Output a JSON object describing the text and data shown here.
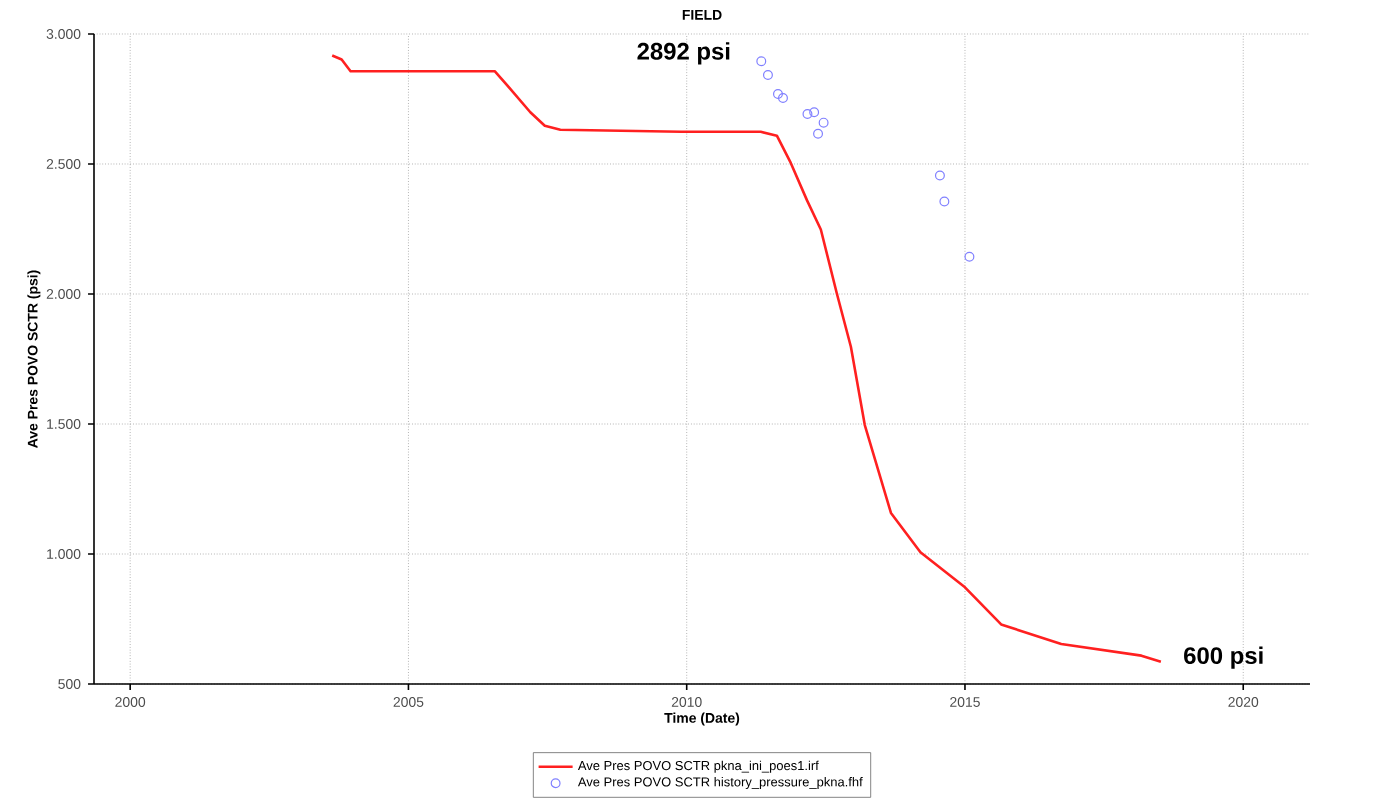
{
  "chart_data": {
    "type": "line",
    "title": "FIELD",
    "xlabel": "Time (Date)",
    "ylabel": "Ave Pres POVO SCTR (psi)",
    "xlim": [
      1999.35,
      2021.2
    ],
    "xticks": [
      2000,
      2005,
      2010,
      2015,
      2020
    ],
    "ylim": [
      500,
      3000
    ],
    "yticks": [
      {
        "value": 500,
        "label": "500"
      },
      {
        "value": 1000,
        "label": "1.000"
      },
      {
        "value": 1500,
        "label": "1.500"
      },
      {
        "value": 2000,
        "label": "2.000"
      },
      {
        "value": 2500,
        "label": "2.500"
      },
      {
        "value": 3000,
        "label": "3.000"
      }
    ],
    "grid": true,
    "legend": "bottom",
    "series": [
      {
        "name": "Ave Pres POVO SCTR pkna_ini_poes1.irf",
        "color": "#ff2020",
        "marker": "none",
        "line_style": "solid",
        "x": [
          2003.63,
          2003.8,
          2003.96,
          2004.86,
          2005.4,
          2006.55,
          2006.83,
          2007.19,
          2007.45,
          2007.73,
          2009.9,
          2011.33,
          2011.62,
          2011.87,
          2012.16,
          2012.41,
          2012.7,
          2012.95,
          2013.2,
          2013.67,
          2014.2,
          2015.0,
          2015.65,
          2016.73,
          2018.17,
          2018.52
        ],
        "values": [
          2917,
          2902,
          2857,
          2857,
          2857,
          2857,
          2789,
          2699,
          2647,
          2632,
          2624,
          2624,
          2609,
          2504,
          2361,
          2248,
          2000,
          1797,
          1496,
          1158,
          1007,
          872,
          729,
          654,
          609,
          586
        ]
      },
      {
        "name": "Ave Pres POVO SCTR history_pressure_pkna.fhf",
        "type": "scatter",
        "color": "#8080ff",
        "marker": "circle",
        "x": [
          2011.34,
          2011.46,
          2011.64,
          2011.73,
          2012.17,
          2012.29,
          2012.46,
          2012.36,
          2014.55,
          2014.63,
          2015.08
        ],
        "values": [
          2895,
          2842,
          2769,
          2754,
          2692,
          2699,
          2659,
          2616,
          2456,
          2356,
          2143
        ]
      }
    ],
    "annotations": [
      {
        "text": "2892 psi",
        "x": 2011.34,
        "y": 2895
      },
      {
        "text": "600 psi",
        "x": 2018.52,
        "y": 586
      }
    ]
  }
}
